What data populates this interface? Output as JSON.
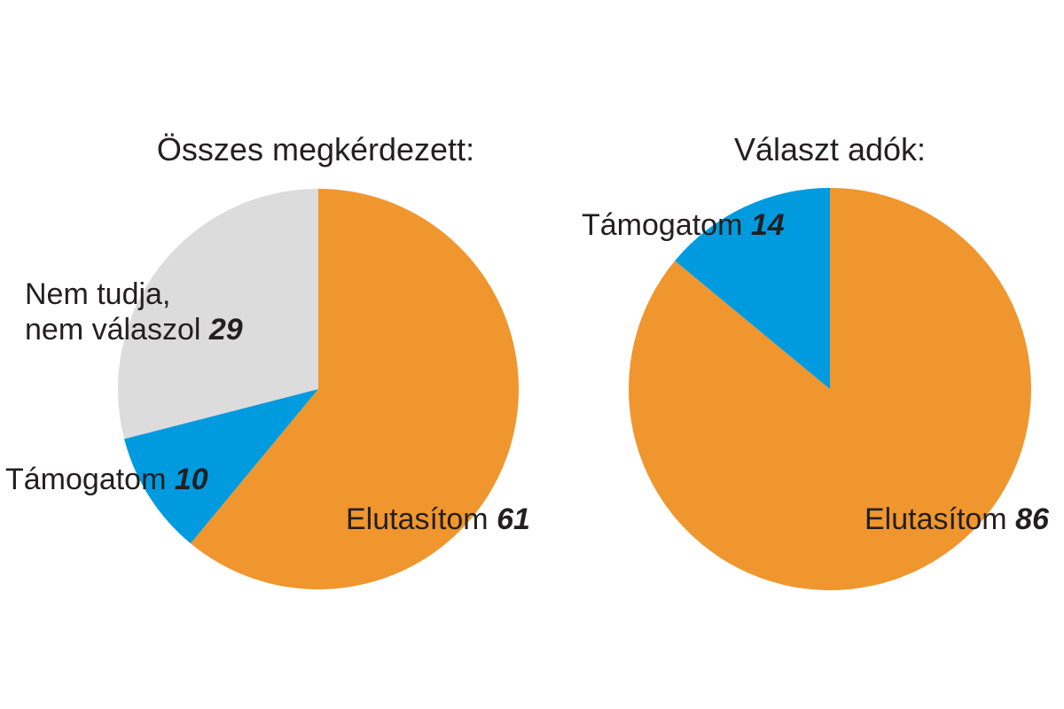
{
  "chart_data": [
    {
      "type": "pie",
      "title": "Összes megkérdezett:",
      "slices": [
        {
          "label": "Elutasítom",
          "label_lines": [
            "Elutasítom"
          ],
          "value": 61,
          "color": "#f0962e"
        },
        {
          "label": "Támogatom",
          "label_lines": [
            "Támogatom"
          ],
          "value": 10,
          "color": "#009bdf"
        },
        {
          "label": "Nem tudja, nem válaszol",
          "label_lines": [
            "Nem tudja,",
            "nem válaszol"
          ],
          "value": 29,
          "color": "#dcdcdc"
        }
      ]
    },
    {
      "type": "pie",
      "title": "Választ adók:",
      "slices": [
        {
          "label": "Elutasítom",
          "label_lines": [
            "Elutasítom"
          ],
          "value": 86,
          "color": "#f0962e"
        },
        {
          "label": "Támogatom",
          "label_lines": [
            "Támogatom"
          ],
          "value": 14,
          "color": "#009bdf"
        }
      ]
    }
  ]
}
